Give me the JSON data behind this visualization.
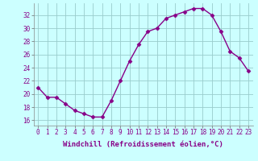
{
  "x": [
    0,
    1,
    2,
    3,
    4,
    5,
    6,
    7,
    8,
    9,
    10,
    11,
    12,
    13,
    14,
    15,
    16,
    17,
    18,
    19,
    20,
    21,
    22,
    23
  ],
  "y": [
    21.0,
    19.5,
    19.5,
    18.5,
    17.5,
    17.0,
    16.5,
    16.5,
    19.0,
    22.0,
    25.0,
    27.5,
    29.5,
    30.0,
    31.5,
    32.0,
    32.5,
    33.0,
    33.0,
    32.0,
    29.5,
    26.5,
    25.5,
    23.5
  ],
  "line_color": "#880088",
  "marker": "D",
  "markersize": 2.5,
  "bg_color": "#ccffff",
  "grid_color": "#99cccc",
  "ylabel_ticks": [
    16,
    18,
    20,
    22,
    24,
    26,
    28,
    30,
    32
  ],
  "ylim": [
    15.2,
    33.8
  ],
  "xlim": [
    -0.5,
    23.5
  ],
  "xticks": [
    0,
    1,
    2,
    3,
    4,
    5,
    6,
    7,
    8,
    9,
    10,
    11,
    12,
    13,
    14,
    15,
    16,
    17,
    18,
    19,
    20,
    21,
    22,
    23
  ],
  "tick_label_size": 5.5,
  "xlabel": "Windchill (Refroidissement éolien,°C)",
  "xlabel_size": 6.5,
  "line_width": 1.0
}
